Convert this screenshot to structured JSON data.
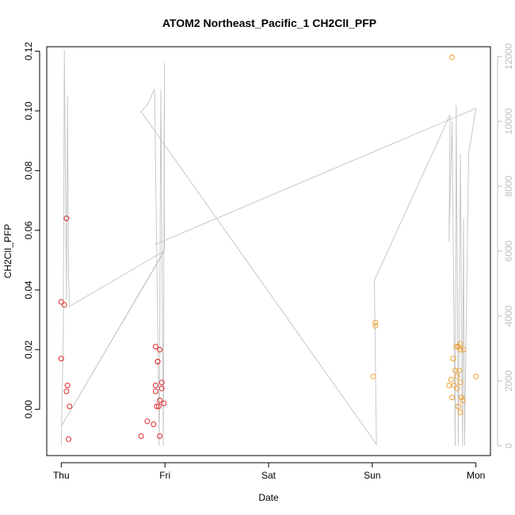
{
  "chart_data": {
    "type": "scatter",
    "title": "ATOM2 Northeast_Pacific_1 CH2ClI_PFP",
    "xlabel": "Date",
    "ylabel": "CH2ClI_PFP",
    "x_ticks": [
      {
        "label": "Thu",
        "day": 0
      },
      {
        "label": "Fri",
        "day": 1
      },
      {
        "label": "Sat",
        "day": 2
      },
      {
        "label": "Sun",
        "day": 3
      },
      {
        "label": "Mon",
        "day": 4
      }
    ],
    "xlim": [
      -0.14,
      4.14
    ],
    "ylim": [
      -0.0155,
      0.1215
    ],
    "y_ticks": [
      0.0,
      0.02,
      0.04,
      0.06,
      0.08,
      0.1,
      0.12
    ],
    "y2lim": [
      -300,
      12300
    ],
    "y2_ticks": [
      0,
      2000,
      4000,
      6000,
      8000,
      10000,
      12000
    ],
    "colors": {
      "series_1": "#dd2a2a",
      "series_2": "#f0a030",
      "secondary_line": "#c8c8c8"
    },
    "series": [
      {
        "color": "#dd2a2a",
        "points": [
          {
            "x": 0.0,
            "y": 0.036
          },
          {
            "x": 0.0,
            "y": 0.017
          },
          {
            "x": 0.03,
            "y": 0.035
          },
          {
            "x": 0.05,
            "y": 0.006
          },
          {
            "x": 0.06,
            "y": 0.008
          },
          {
            "x": 0.05,
            "y": 0.064
          },
          {
            "x": 0.08,
            "y": 0.001
          },
          {
            "x": 0.07,
            "y": -0.01
          },
          {
            "x": 0.77,
            "y": -0.009
          },
          {
            "x": 0.83,
            "y": -0.004
          },
          {
            "x": 0.89,
            "y": -0.005
          },
          {
            "x": 0.91,
            "y": 0.021
          },
          {
            "x": 0.91,
            "y": 0.008
          },
          {
            "x": 0.91,
            "y": 0.006
          },
          {
            "x": 0.93,
            "y": 0.016
          },
          {
            "x": 0.93,
            "y": 0.016
          },
          {
            "x": 0.92,
            "y": 0.001
          },
          {
            "x": 0.94,
            "y": 0.001
          },
          {
            "x": 0.95,
            "y": 0.02
          },
          {
            "x": 0.95,
            "y": 0.003
          },
          {
            "x": 0.97,
            "y": 0.009
          },
          {
            "x": 0.97,
            "y": 0.007
          },
          {
            "x": 0.99,
            "y": 0.002
          },
          {
            "x": 0.95,
            "y": -0.009
          }
        ]
      },
      {
        "color": "#f0a030",
        "points": [
          {
            "x": 3.03,
            "y": 0.029
          },
          {
            "x": 3.03,
            "y": 0.028
          },
          {
            "x": 3.01,
            "y": 0.011
          },
          {
            "x": 3.77,
            "y": 0.118
          },
          {
            "x": 3.74,
            "y": 0.008
          },
          {
            "x": 3.76,
            "y": 0.01
          },
          {
            "x": 3.77,
            "y": 0.004
          },
          {
            "x": 3.78,
            "y": 0.017
          },
          {
            "x": 3.79,
            "y": 0.008
          },
          {
            "x": 3.8,
            "y": 0.013
          },
          {
            "x": 3.81,
            "y": 0.021
          },
          {
            "x": 3.82,
            "y": 0.007
          },
          {
            "x": 3.82,
            "y": 0.011
          },
          {
            "x": 3.83,
            "y": 0.021
          },
          {
            "x": 3.84,
            "y": 0.013
          },
          {
            "x": 3.85,
            "y": 0.022
          },
          {
            "x": 3.85,
            "y": 0.02
          },
          {
            "x": 3.85,
            "y": 0.009
          },
          {
            "x": 3.86,
            "y": 0.004
          },
          {
            "x": 3.87,
            "y": 0.003
          },
          {
            "x": 3.88,
            "y": 0.02
          },
          {
            "x": 3.83,
            "y": 0.001
          },
          {
            "x": 3.85,
            "y": -0.001
          },
          {
            "x": 4.0,
            "y": 0.011
          }
        ]
      }
    ],
    "secondary_line": {
      "axis": "right",
      "points": [
        {
          "x": 0.0,
          "y2": 0
        },
        {
          "x": 0.02,
          "y2": 3400
        },
        {
          "x": 0.03,
          "y2": 12200
        },
        {
          "x": 0.05,
          "y2": 4500
        },
        {
          "x": 0.06,
          "y2": 10800
        },
        {
          "x": 0.07,
          "y2": 5200
        },
        {
          "x": 0.08,
          "y2": 4300
        },
        {
          "x": 0.99,
          "y2": 6000
        },
        {
          "x": 0.0,
          "y2": 600
        },
        {
          "x": 0.995,
          "y2": 6000
        },
        {
          "x": 0.995,
          "y2": 11800
        },
        {
          "x": 0.985,
          "y2": 0
        },
        {
          "x": 0.96,
          "y2": 11000
        },
        {
          "x": 0.945,
          "y2": 0
        },
        {
          "x": 0.9,
          "y2": 11000
        },
        {
          "x": 0.83,
          "y2": 10500
        },
        {
          "x": 0.77,
          "y2": 10300
        },
        {
          "x": 3.04,
          "y2": 50
        },
        {
          "x": 3.02,
          "y2": 5100
        },
        {
          "x": 3.75,
          "y2": 10200
        },
        {
          "x": 3.74,
          "y2": 6300
        },
        {
          "x": 3.77,
          "y2": 10000
        },
        {
          "x": 3.8,
          "y2": 0
        },
        {
          "x": 3.81,
          "y2": 10500
        },
        {
          "x": 3.83,
          "y2": 0
        },
        {
          "x": 3.85,
          "y2": 9000
        },
        {
          "x": 3.87,
          "y2": 0
        },
        {
          "x": 3.88,
          "y2": 7000
        },
        {
          "x": 3.89,
          "y2": 0
        },
        {
          "x": 3.93,
          "y2": 9000
        },
        {
          "x": 4.0,
          "y2": 10400
        },
        {
          "x": 0.9,
          "y2": 6200
        }
      ]
    }
  }
}
